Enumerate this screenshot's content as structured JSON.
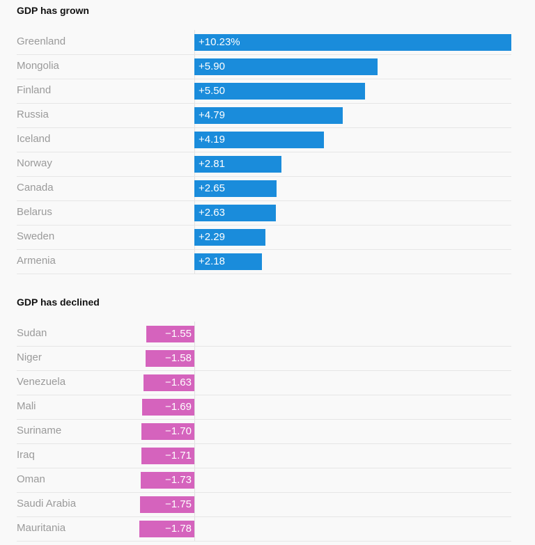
{
  "chart_data": [
    {
      "type": "bar",
      "orientation": "horizontal",
      "title": "GDP has grown",
      "categories": [
        "Greenland",
        "Mongolia",
        "Finland",
        "Russia",
        "Iceland",
        "Norway",
        "Canada",
        "Belarus",
        "Sweden",
        "Armenia"
      ],
      "values": [
        10.23,
        5.9,
        5.5,
        4.79,
        4.19,
        2.81,
        2.65,
        2.63,
        2.29,
        2.18
      ],
      "labels": [
        "+10.23%",
        "+5.90",
        "+5.50",
        "+4.79",
        "+4.19",
        "+2.81",
        "+2.65",
        "+2.63",
        "+2.29",
        "+2.18"
      ],
      "color": "#1a8cdb"
    },
    {
      "type": "bar",
      "orientation": "horizontal",
      "title": "GDP has declined",
      "categories": [
        "Sudan",
        "Niger",
        "Venezuela",
        "Mali",
        "Suriname",
        "Iraq",
        "Oman",
        "Saudi Arabia",
        "Mauritania"
      ],
      "values": [
        -1.55,
        -1.58,
        -1.63,
        -1.69,
        -1.7,
        -1.71,
        -1.73,
        -1.75,
        -1.78
      ],
      "labels": [
        "−1.55",
        "−1.58",
        "−1.63",
        "−1.69",
        "−1.70",
        "−1.71",
        "−1.73",
        "−1.75",
        "−1.78"
      ],
      "color": "#d563bd"
    }
  ]
}
